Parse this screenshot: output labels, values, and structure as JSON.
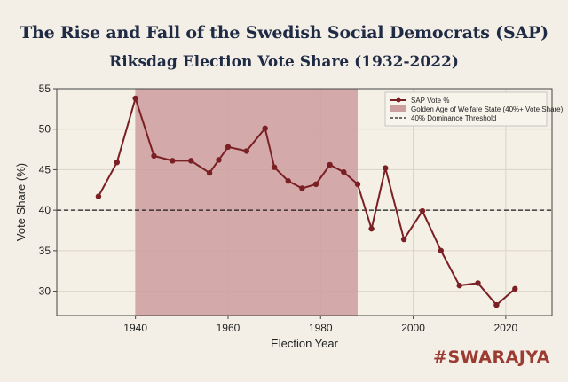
{
  "chart_data": {
    "type": "line",
    "title": "The Rise and Fall of the Swedish Social Democrats (SAP)",
    "subtitle": "Riksdag Election Vote Share (1932-2022)",
    "xlabel": "Election Year",
    "ylabel": "Vote Share (%)",
    "xlim": [
      1923,
      2030
    ],
    "ylim": [
      27,
      55
    ],
    "xticks": [
      1940,
      1960,
      1980,
      2000,
      2020
    ],
    "yticks": [
      30,
      35,
      40,
      45,
      50,
      55
    ],
    "series": [
      {
        "name": "SAP Vote %",
        "color": "#7a1f24",
        "x": [
          1932,
          1936,
          1940,
          1944,
          1948,
          1952,
          1956,
          1958,
          1960,
          1964,
          1968,
          1970,
          1973,
          1976,
          1979,
          1982,
          1985,
          1988,
          1991,
          1994,
          1998,
          2002,
          2006,
          2010,
          2014,
          2018,
          2022
        ],
        "y": [
          41.7,
          45.9,
          53.8,
          46.7,
          46.1,
          46.1,
          44.6,
          46.2,
          47.8,
          47.3,
          50.1,
          45.3,
          43.6,
          42.7,
          43.2,
          45.6,
          44.7,
          43.2,
          37.7,
          45.2,
          36.4,
          39.9,
          35.0,
          30.7,
          31.0,
          28.3,
          30.3
        ]
      }
    ],
    "shaded_region": {
      "label": "Golden Age of Welfare State (40%+ Vote Share)",
      "x_start": 1940,
      "x_end": 1988,
      "color": "#cd9e9e"
    },
    "reference_line": {
      "label": "40% Dominance Threshold",
      "y": 40,
      "color": "#1a1a1a"
    },
    "legend_position": "top-right",
    "grid": true
  },
  "watermark": "#SWARAJYA"
}
